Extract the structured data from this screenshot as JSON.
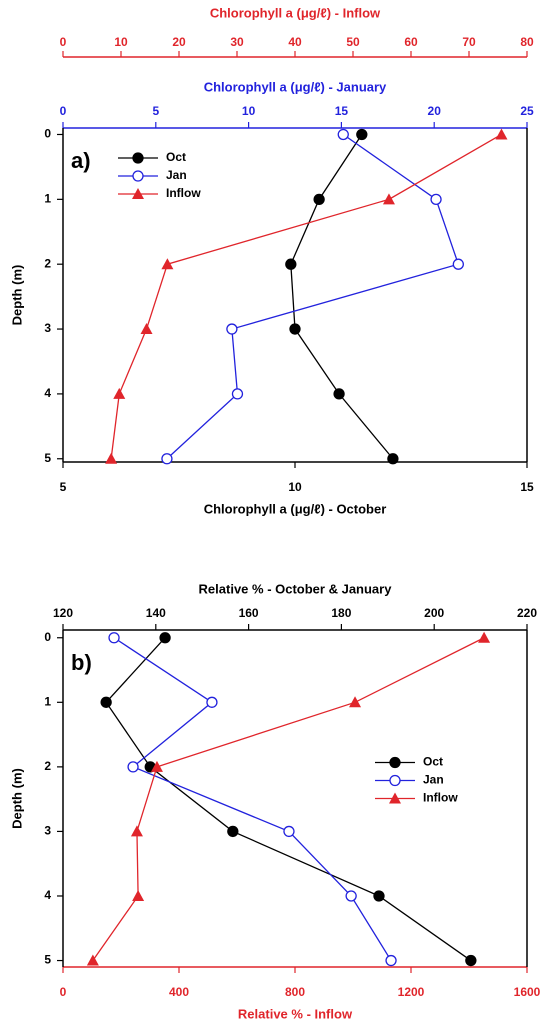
{
  "chart_data": [
    {
      "type": "line",
      "panel_label": "a)",
      "ylabel": "Depth (m)",
      "ylim": [
        -0.1,
        5.05
      ],
      "yticks": [
        0,
        1,
        2,
        3,
        4,
        5
      ],
      "y_reversed": true,
      "legend": "upper left",
      "depths": [
        0,
        1,
        2,
        3,
        4,
        5
      ],
      "x_axes": [
        {
          "id": "bottom",
          "position": "bottom",
          "label": "Chlorophyll a (μg/ℓ) - October",
          "color": "#000000",
          "lim": [
            5,
            15
          ],
          "ticks": [
            5,
            10,
            15
          ]
        },
        {
          "id": "jan",
          "position": "top",
          "label": "Chlorophyll a (μg/ℓ) - January",
          "color": "#2222dd",
          "lim": [
            0,
            25
          ],
          "ticks": [
            0,
            5,
            10,
            15,
            20,
            25
          ]
        },
        {
          "id": "inflow",
          "position": "top-outer",
          "label": "Chlorophyll a (μg/ℓ) - Inflow",
          "color": "#e0252b",
          "lim": [
            0,
            80
          ],
          "ticks": [
            0,
            10,
            20,
            30,
            40,
            50,
            60,
            70,
            80
          ]
        }
      ],
      "series": [
        {
          "name": "Oct",
          "color": "#000000",
          "marker": "circle-filled",
          "axis": "bottom",
          "values": [
            11.44,
            10.52,
            9.91,
            10.0,
            10.95,
            12.11
          ]
        },
        {
          "name": "Jan",
          "color": "#2222dd",
          "marker": "circle-open",
          "axis": "jan",
          "values": [
            15.1,
            20.1,
            21.3,
            9.1,
            9.4,
            5.6
          ]
        },
        {
          "name": "Inflow",
          "color": "#e0252b",
          "marker": "triangle",
          "axis": "inflow",
          "values": [
            75.6,
            56.2,
            18.0,
            14.4,
            9.7,
            8.3
          ]
        }
      ]
    },
    {
      "type": "line",
      "panel_label": "b)",
      "ylabel": "Depth (m)",
      "ylim": [
        -0.12,
        5.1
      ],
      "yticks": [
        0,
        1,
        2,
        3,
        4,
        5
      ],
      "y_reversed": true,
      "legend": "center right",
      "depths": [
        0,
        1,
        2,
        3,
        4,
        5
      ],
      "x_axes": [
        {
          "id": "top",
          "position": "top",
          "label": "Relative % - October & January",
          "color": "#000000",
          "lim": [
            120,
            220
          ],
          "ticks": [
            120,
            140,
            160,
            180,
            200,
            220
          ]
        },
        {
          "id": "inflow",
          "position": "bottom",
          "label": "Relative % - Inflow",
          "color": "#e0252b",
          "lim": [
            0,
            1600
          ],
          "ticks": [
            0,
            400,
            800,
            1200,
            1600
          ]
        }
      ],
      "series": [
        {
          "name": "Oct",
          "color": "#000000",
          "marker": "circle-filled",
          "axis": "top",
          "values": [
            142.0,
            129.3,
            138.8,
            156.6,
            188.1,
            207.9
          ]
        },
        {
          "name": "Jan",
          "color": "#2222dd",
          "marker": "circle-open",
          "axis": "top",
          "values": [
            131.0,
            152.1,
            135.1,
            168.7,
            182.1,
            190.7
          ]
        },
        {
          "name": "Inflow",
          "color": "#e0252b",
          "marker": "triangle",
          "axis": "inflow",
          "values": [
            1452,
            1007,
            324,
            255,
            259,
            103
          ]
        }
      ]
    }
  ]
}
